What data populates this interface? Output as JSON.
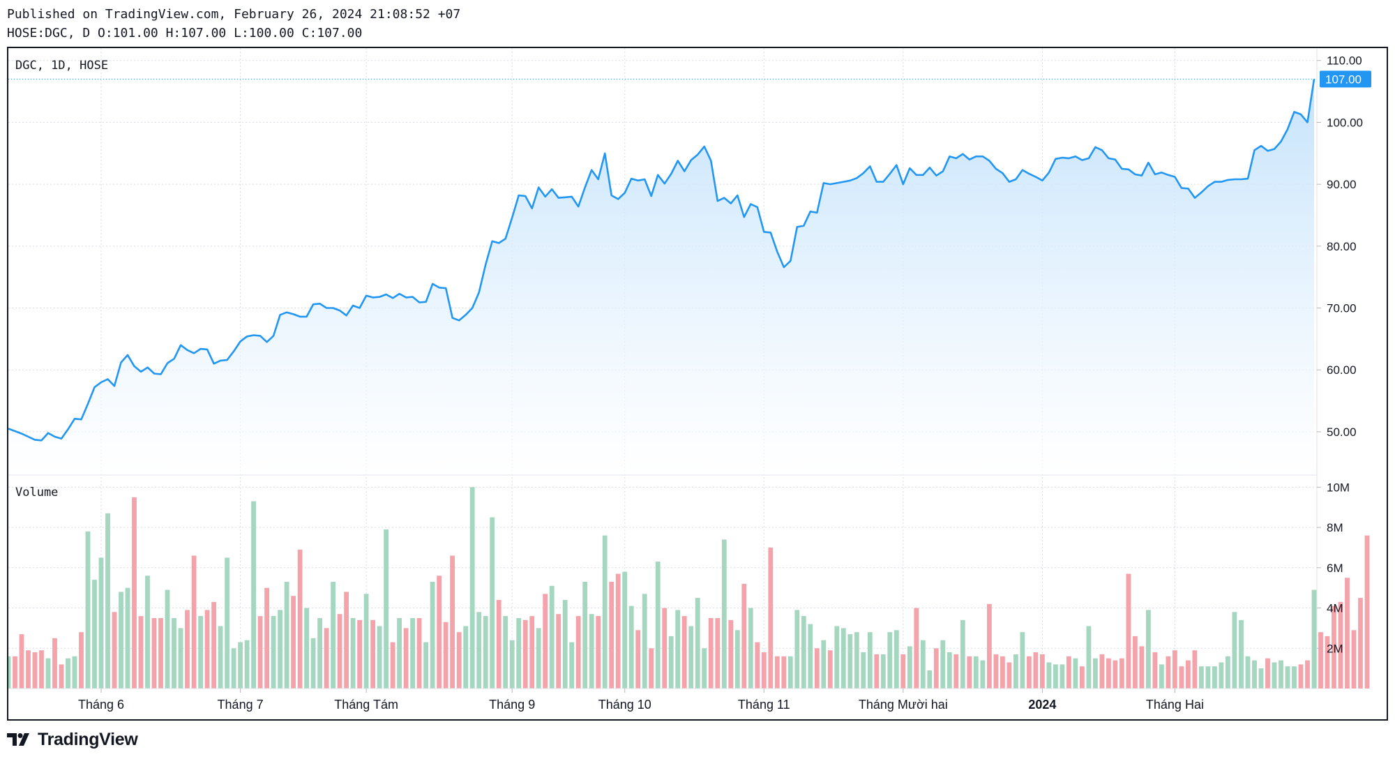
{
  "header": {
    "published": "Published on TradingView.com, February 26, 2024 21:08:52 +07",
    "ohlc": "HOSE:DGC, D O:101.00 H:107.00 L:100.00 C:107.00"
  },
  "footer": {
    "brand": "TradingView"
  },
  "colors": {
    "line": "#2196f3",
    "area_top": "#bbdefb",
    "area_bottom": "#ffffff",
    "vol_up": "#a5d6bf",
    "vol_down": "#f4a3ab",
    "grid": "#d8dbe2",
    "price_badge": "#2196f3"
  },
  "chart_data": {
    "type": "line",
    "symbol_label": "DGC, 1D, HOSE",
    "volume_label": "Volume",
    "last_price_label": "107.00",
    "y_ticks": [
      "50.00",
      "60.00",
      "70.00",
      "80.00",
      "90.00",
      "100.00",
      "110.00"
    ],
    "volume_ticks": [
      "2M",
      "4M",
      "6M",
      "8M",
      "10M"
    ],
    "x_ticks": [
      "Tháng 6",
      "Tháng 7",
      "Tháng Tám",
      "Tháng 9",
      "Tháng 10",
      "Tháng 11",
      "Tháng Mười hai",
      "2024",
      "Tháng Hai"
    ],
    "grid": true,
    "ylim": [
      43,
      112
    ],
    "volume_ylim": [
      0,
      10.6
    ],
    "close": [
      50.5,
      50.1,
      49.7,
      49.2,
      48.7,
      48.6,
      49.8,
      49.2,
      48.9,
      50.4,
      52.1,
      52.0,
      54.5,
      57.2,
      58.0,
      58.5,
      57.4,
      61.2,
      62.4,
      60.6,
      59.7,
      60.4,
      59.4,
      59.3,
      61.1,
      61.8,
      64.0,
      63.2,
      62.7,
      63.4,
      63.3,
      61.0,
      61.5,
      61.6,
      63.0,
      64.6,
      65.4,
      65.6,
      65.5,
      64.5,
      65.5,
      68.9,
      69.3,
      69.0,
      68.6,
      68.6,
      70.6,
      70.7,
      70.0,
      70.0,
      69.6,
      68.8,
      70.4,
      70.0,
      72.0,
      71.7,
      71.8,
      72.2,
      71.6,
      72.3,
      71.7,
      71.8,
      70.9,
      71.0,
      73.9,
      73.3,
      73.2,
      68.4,
      68.0,
      68.9,
      70.0,
      72.5,
      77.0,
      80.8,
      80.5,
      81.2,
      84.6,
      88.2,
      88.1,
      86.1,
      89.5,
      88.0,
      89.2,
      87.8,
      87.9,
      88.0,
      86.4,
      89.5,
      92.3,
      90.8,
      95.0,
      88.2,
      87.6,
      88.6,
      90.9,
      90.6,
      90.8,
      88.1,
      91.5,
      90.1,
      91.7,
      93.8,
      92.1,
      93.9,
      94.8,
      96.1,
      93.8,
      87.3,
      87.8,
      86.9,
      88.2,
      84.7,
      86.8,
      86.3,
      82.3,
      82.2,
      79.1,
      76.6,
      77.6,
      83.1,
      83.3,
      85.6,
      85.4,
      90.2,
      90.0,
      90.2,
      90.4,
      90.6,
      91.0,
      91.8,
      92.9,
      90.4,
      90.4,
      91.7,
      93.1,
      90.0,
      92.6,
      91.5,
      91.5,
      92.7,
      91.4,
      92.1,
      94.5,
      94.2,
      94.9,
      94.0,
      94.5,
      94.5,
      93.8,
      92.5,
      91.8,
      90.4,
      90.8,
      92.3,
      91.7,
      91.2,
      90.6,
      91.9,
      94.1,
      94.3,
      94.2,
      94.5,
      93.9,
      94.2,
      96.0,
      95.5,
      94.2,
      94.0,
      92.5,
      92.4,
      91.6,
      91.4,
      93.5,
      91.6,
      91.9,
      91.5,
      91.2,
      89.4,
      89.3,
      87.8,
      88.7,
      89.7,
      90.4,
      90.4,
      90.7,
      90.8,
      90.8,
      90.9,
      95.5,
      96.2,
      95.4,
      95.7,
      96.9,
      98.9,
      101.7,
      101.3,
      100.0,
      107.0
    ],
    "volume_m": [
      1.6,
      1.6,
      2.7,
      1.9,
      1.8,
      1.9,
      1.5,
      2.5,
      1.2,
      1.5,
      1.6,
      2.8,
      7.8,
      5.4,
      6.5,
      8.7,
      3.8,
      4.8,
      5.0,
      9.5,
      3.6,
      5.6,
      3.5,
      3.5,
      4.9,
      3.5,
      3.0,
      3.9,
      6.6,
      3.6,
      3.9,
      4.3,
      3.1,
      6.5,
      2.0,
      2.3,
      2.4,
      9.3,
      3.6,
      5.0,
      3.6,
      3.9,
      5.3,
      4.6,
      6.9,
      4.0,
      2.5,
      3.5,
      3.0,
      5.3,
      3.7,
      4.8,
      3.5,
      3.4,
      4.7,
      3.4,
      3.1,
      7.9,
      2.3,
      3.5,
      3.0,
      3.5,
      3.5,
      2.3,
      5.3,
      5.6,
      3.3,
      6.6,
      2.8,
      3.1,
      10.0,
      3.8,
      3.6,
      8.5,
      4.4,
      3.6,
      2.4,
      3.5,
      3.4,
      3.6,
      3.0,
      4.7,
      5.1,
      3.7,
      4.4,
      2.3,
      3.6,
      5.3,
      3.7,
      3.6,
      7.6,
      5.3,
      5.7,
      5.8,
      4.1,
      2.9,
      4.7,
      2.0,
      6.3,
      4.0,
      2.6,
      3.9,
      3.6,
      3.1,
      4.5,
      2.0,
      3.5,
      3.5,
      7.4,
      3.4,
      2.9,
      5.2,
      4.0,
      2.3,
      1.8,
      7.0,
      1.6,
      1.6,
      1.6,
      3.9,
      3.6,
      3.2,
      2.0,
      2.4,
      1.9,
      3.1,
      3.0,
      2.7,
      2.8,
      1.8,
      2.8,
      1.7,
      1.7,
      2.8,
      2.9,
      1.7,
      2.1,
      4.0,
      2.4,
      0.9,
      2.0,
      2.4,
      1.8,
      1.7,
      3.4,
      1.6,
      1.6,
      1.4,
      4.2,
      1.7,
      1.6,
      1.3,
      1.7,
      2.8,
      1.6,
      1.8,
      1.7,
      1.3,
      1.2,
      1.2,
      1.6,
      1.5,
      1.1,
      3.1,
      1.5,
      1.7,
      1.5,
      1.4,
      1.5,
      5.7,
      2.6,
      2.1,
      3.9,
      1.8,
      1.2,
      1.6,
      1.9,
      1.1,
      1.4,
      1.9,
      1.1,
      1.1,
      1.1,
      1.3,
      1.6,
      3.8,
      3.4,
      1.6,
      1.4,
      1.0,
      1.5,
      1.3,
      1.4,
      1.1,
      1.1,
      1.2,
      1.4,
      4.9,
      2.8,
      2.6,
      4.1,
      4.3,
      5.5,
      2.9,
      4.5,
      7.6
    ]
  }
}
